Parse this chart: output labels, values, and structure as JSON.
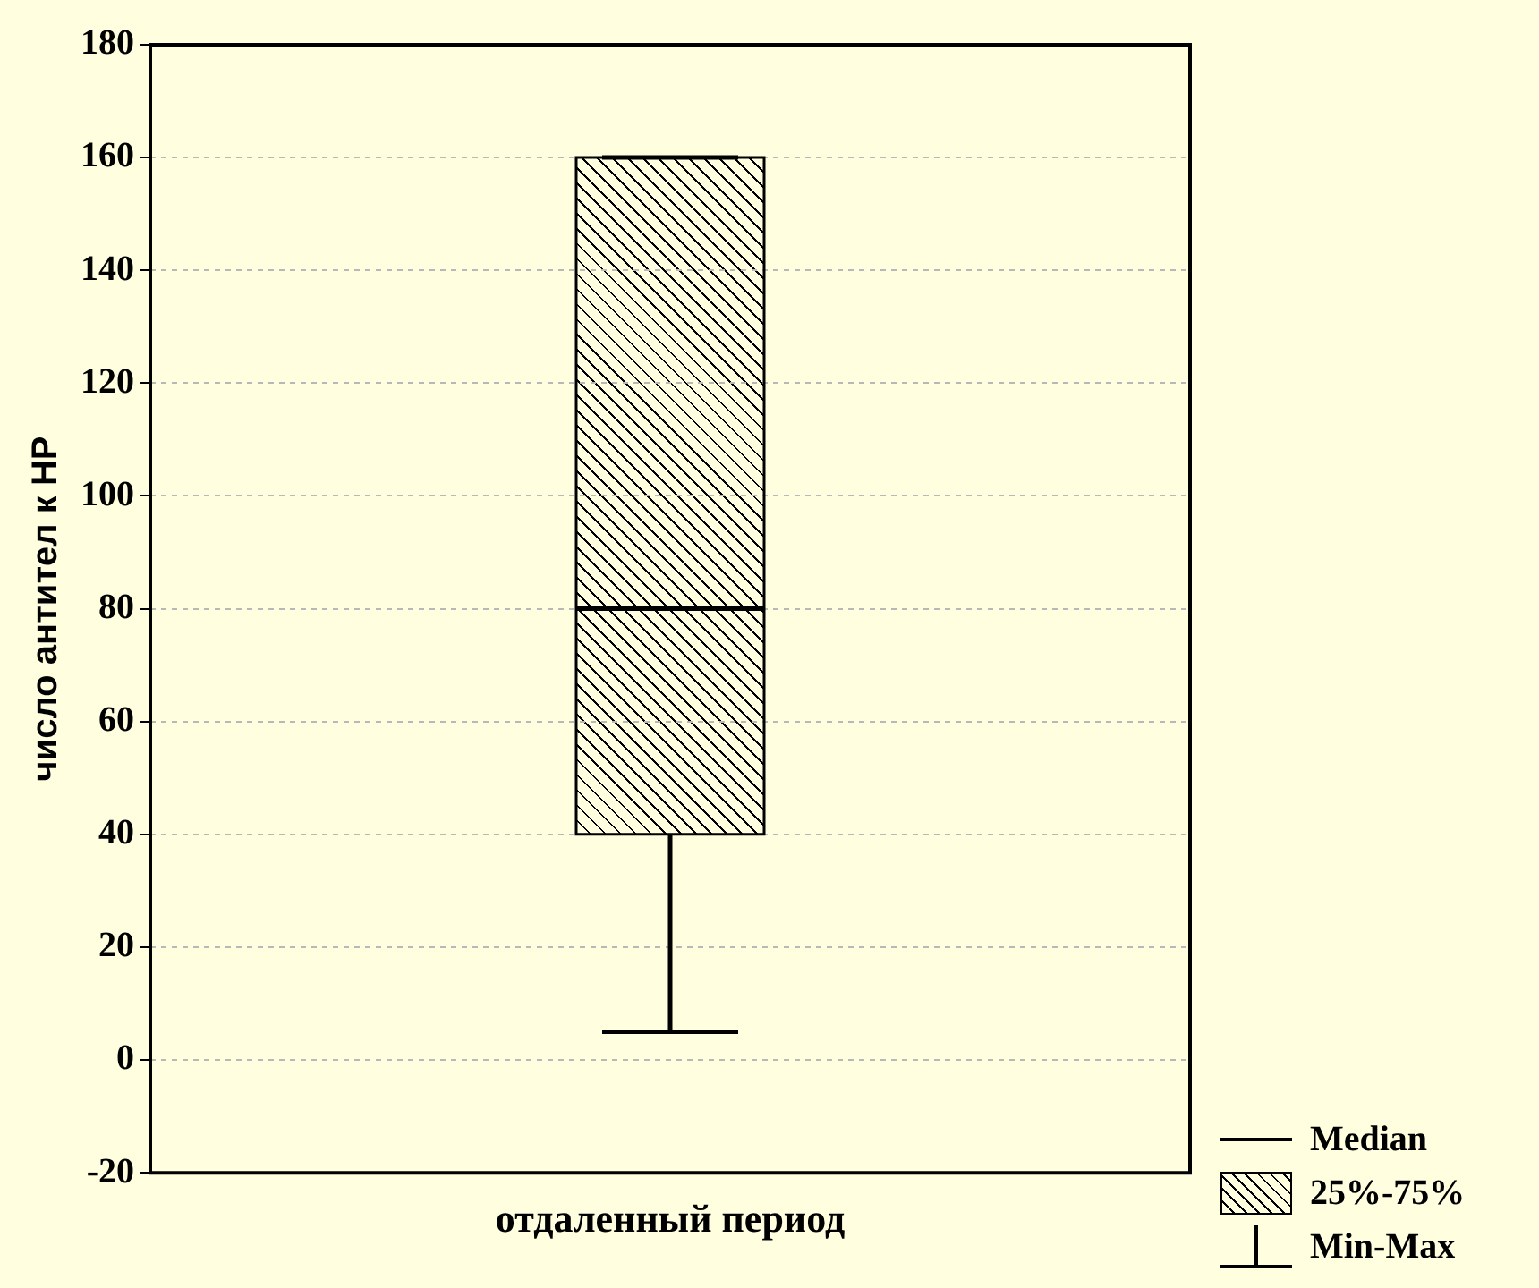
{
  "chart_data": {
    "type": "box",
    "ylabel": "число антител к HP",
    "categories": [
      "отдаленный период"
    ],
    "boxes": [
      {
        "low": 5,
        "q1": 40,
        "median": 80,
        "q3": 160,
        "high": 160
      }
    ],
    "color": "#000000",
    "ylim": [
      -20,
      180
    ],
    "yticks": [
      -20,
      0,
      20,
      40,
      60,
      80,
      100,
      120,
      140,
      160,
      180
    ],
    "grid": "y",
    "annotations": [
      "Median",
      "25%-75%",
      "Min-Max"
    ]
  }
}
